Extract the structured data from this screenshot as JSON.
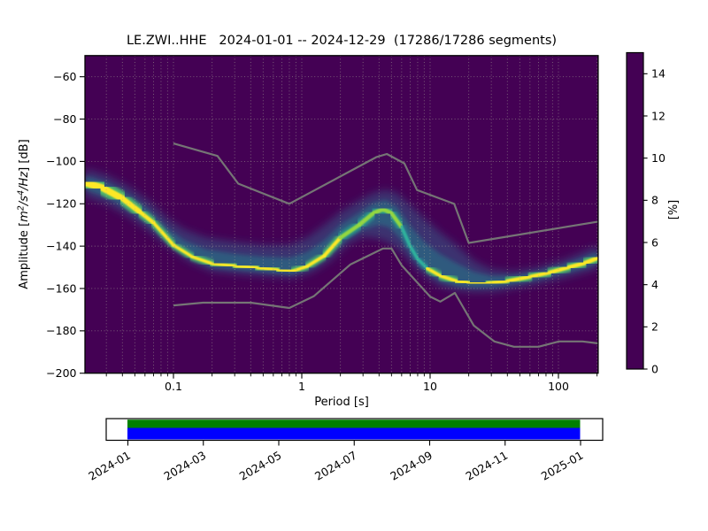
{
  "chart_data": {
    "type": "heatmap",
    "title": "LE.ZWI..HHE   2024-01-01 -- 2024-12-29  (17286/17286 segments)",
    "station_id": "LE.ZWI..HHE",
    "date_range": "2024-01-01 -- 2024-12-29",
    "segments_used": "17286/17286 segments",
    "xlabel": "Period [s]",
    "ylabel": "Amplitude [m²/s⁴/Hz] [dB]",
    "ylabel_segments": [
      {
        "t": "Amplitude [",
        "i": false,
        "sup": false
      },
      {
        "t": "m",
        "i": true,
        "sup": false
      },
      {
        "t": "2",
        "i": true,
        "sup": true
      },
      {
        "t": "/s",
        "i": true,
        "sup": false
      },
      {
        "t": "4",
        "i": true,
        "sup": true
      },
      {
        "t": "/Hz",
        "i": true,
        "sup": false
      },
      {
        "t": "] [dB]",
        "i": false,
        "sup": false
      }
    ],
    "xscale": "log",
    "xlim": [
      0.0204,
      204
    ],
    "ylim": [
      -200,
      -50
    ],
    "xticks": [
      0.1,
      1,
      10,
      100
    ],
    "xtick_labels": [
      "0.1",
      "1",
      "10",
      "100"
    ],
    "yticks": [
      -200,
      -180,
      -160,
      -140,
      -120,
      -100,
      -80,
      -60
    ],
    "grid": true,
    "colormap": "viridis",
    "viridis_stops": [
      "#440154",
      "#482475",
      "#414487",
      "#355f8d",
      "#2a788e",
      "#21918c",
      "#22a884",
      "#44bf70",
      "#7ad151",
      "#bddf26",
      "#fde725"
    ],
    "colorbar": {
      "label": "[%]",
      "ticks": [
        0,
        2,
        4,
        6,
        8,
        10,
        12,
        14
      ],
      "vmax": 15
    },
    "palette": {
      "background_value_color": "#440154",
      "core": {
        "y": "#fde725",
        "g": "#93d741",
        "t": "#2fb09b"
      },
      "sheath": {
        "y": "#54c568",
        "g": "#2a9d8a",
        "t": "#287a8e"
      },
      "cloud_outer": "#31688e",
      "cloud_inner": "#26828e",
      "noise_model_color": "#757575",
      "grid_color": "rgba(168,168,152,0.6)",
      "coverage_top": "#008000",
      "coverage_bottom": "#0000ff"
    },
    "mode_line": [
      [
        0.0204,
        -110.0,
        "y",
        8.0
      ],
      [
        0.028,
        -112.5,
        "y",
        8.0
      ],
      [
        0.04,
        -117.5,
        "y",
        7.0
      ],
      [
        0.055,
        -124.0,
        "y",
        5.0
      ],
      [
        0.07,
        -129.0,
        "y",
        4.0
      ],
      [
        0.1,
        -139.5,
        "y",
        3.4
      ],
      [
        0.14,
        -145.0,
        "y",
        3.4
      ],
      [
        0.2,
        -148.2,
        "y",
        3.6
      ],
      [
        0.3,
        -149.3,
        "y",
        3.6
      ],
      [
        0.45,
        -150.2,
        "y",
        3.6
      ],
      [
        0.65,
        -151.2,
        "y",
        3.6
      ],
      [
        0.85,
        -151.8,
        "y",
        3.6
      ],
      [
        1.1,
        -149.5,
        "y",
        3.6
      ],
      [
        1.5,
        -144.5,
        "y",
        3.8
      ],
      [
        2.0,
        -136.0,
        "g",
        4.4
      ],
      [
        2.8,
        -130.0,
        "g",
        4.6
      ],
      [
        3.6,
        -124.5,
        "g",
        4.8
      ],
      [
        4.3,
        -122.5,
        "g",
        4.8
      ],
      [
        5.0,
        -124.5,
        "g",
        4.6
      ],
      [
        6.0,
        -131.0,
        "t",
        4.0
      ],
      [
        7.0,
        -140.0,
        "t",
        3.6
      ],
      [
        8.0,
        -146.0,
        "t",
        3.4
      ],
      [
        9.5,
        -150.5,
        "y",
        3.6
      ],
      [
        12,
        -154.0,
        "y",
        3.8
      ],
      [
        16,
        -156.5,
        "y",
        4.0
      ],
      [
        20,
        -157.3,
        "y",
        4.0
      ],
      [
        28,
        -157.5,
        "y",
        4.0
      ],
      [
        40,
        -156.5,
        "y",
        4.0
      ],
      [
        60,
        -154.5,
        "y",
        4.2
      ],
      [
        85,
        -152.5,
        "y",
        4.2
      ],
      [
        120,
        -150.0,
        "y",
        4.4
      ],
      [
        160,
        -148.0,
        "y",
        4.6
      ],
      [
        204,
        -145.5,
        "y",
        5.0
      ]
    ],
    "halo_upper": [
      [
        0.0204,
        -103.5
      ],
      [
        0.03,
        -106.5
      ],
      [
        0.045,
        -112
      ],
      [
        0.065,
        -119
      ],
      [
        0.09,
        -127
      ],
      [
        0.12,
        -132
      ],
      [
        0.18,
        -136
      ],
      [
        0.3,
        -138
      ],
      [
        0.5,
        -139.5
      ],
      [
        0.8,
        -139.5
      ],
      [
        1.1,
        -136
      ],
      [
        1.5,
        -130
      ],
      [
        2.0,
        -124
      ],
      [
        2.8,
        -118.5
      ],
      [
        3.6,
        -115
      ],
      [
        4.5,
        -113.5
      ],
      [
        5.5,
        -115
      ],
      [
        7,
        -120.5
      ],
      [
        9,
        -127
      ],
      [
        12,
        -133.5
      ],
      [
        16,
        -139.5
      ],
      [
        22,
        -147
      ],
      [
        30,
        -151
      ],
      [
        45,
        -152
      ],
      [
        70,
        -150
      ],
      [
        110,
        -146.5
      ],
      [
        160,
        -142.5
      ],
      [
        204,
        -139.5
      ]
    ],
    "halo_lower": [
      [
        0.0204,
        -116.5
      ],
      [
        0.03,
        -120
      ],
      [
        0.045,
        -126
      ],
      [
        0.065,
        -133
      ],
      [
        0.09,
        -140
      ],
      [
        0.13,
        -147
      ],
      [
        0.2,
        -152
      ],
      [
        0.35,
        -153.5
      ],
      [
        0.6,
        -154.5
      ],
      [
        0.85,
        -155
      ],
      [
        1.2,
        -152.5
      ],
      [
        1.7,
        -146.5
      ],
      [
        2.3,
        -139
      ],
      [
        3,
        -135.5
      ],
      [
        4,
        -136.5
      ],
      [
        4.8,
        -138.5
      ],
      [
        6,
        -143
      ],
      [
        7.5,
        -149.5
      ],
      [
        9,
        -154
      ],
      [
        12,
        -159
      ],
      [
        16,
        -161
      ],
      [
        22,
        -161.8
      ],
      [
        32,
        -161.5
      ],
      [
        50,
        -159.5
      ],
      [
        80,
        -157
      ],
      [
        120,
        -154.5
      ],
      [
        160,
        -152.5
      ],
      [
        204,
        -150.5
      ]
    ],
    "noise_models": {
      "nhnm": [
        [
          0.1,
          -91.5
        ],
        [
          0.22,
          -97.4
        ],
        [
          0.32,
          -110.5
        ],
        [
          0.8,
          -120.0
        ],
        [
          3.8,
          -98.0
        ],
        [
          4.6,
          -96.5
        ],
        [
          6.3,
          -100.9
        ],
        [
          7.9,
          -113.5
        ],
        [
          15.4,
          -120.0
        ],
        [
          20,
          -138.5
        ],
        [
          204,
          -128.4
        ]
      ],
      "nlnm": [
        [
          0.1,
          -168.0
        ],
        [
          0.17,
          -166.7
        ],
        [
          0.4,
          -166.7
        ],
        [
          0.8,
          -169.2
        ],
        [
          1.24,
          -163.7
        ],
        [
          2.4,
          -148.6
        ],
        [
          4.3,
          -141.1
        ],
        [
          5.0,
          -141.1
        ],
        [
          6.0,
          -149.0
        ],
        [
          10,
          -163.8
        ],
        [
          12,
          -166.2
        ],
        [
          15.6,
          -162.1
        ],
        [
          21.9,
          -177.5
        ],
        [
          31.6,
          -185.0
        ],
        [
          45,
          -187.5
        ],
        [
          70,
          -187.5
        ],
        [
          101,
          -185.0
        ],
        [
          154,
          -185.0
        ],
        [
          204,
          -185.9
        ]
      ]
    },
    "coverage": {
      "start": "2024-01-01",
      "end": "2024-12-29",
      "tick_labels": [
        "2024-01",
        "2024-03",
        "2024-05",
        "2024-07",
        "2024-09",
        "2024-11",
        "2025-01"
      ]
    }
  }
}
